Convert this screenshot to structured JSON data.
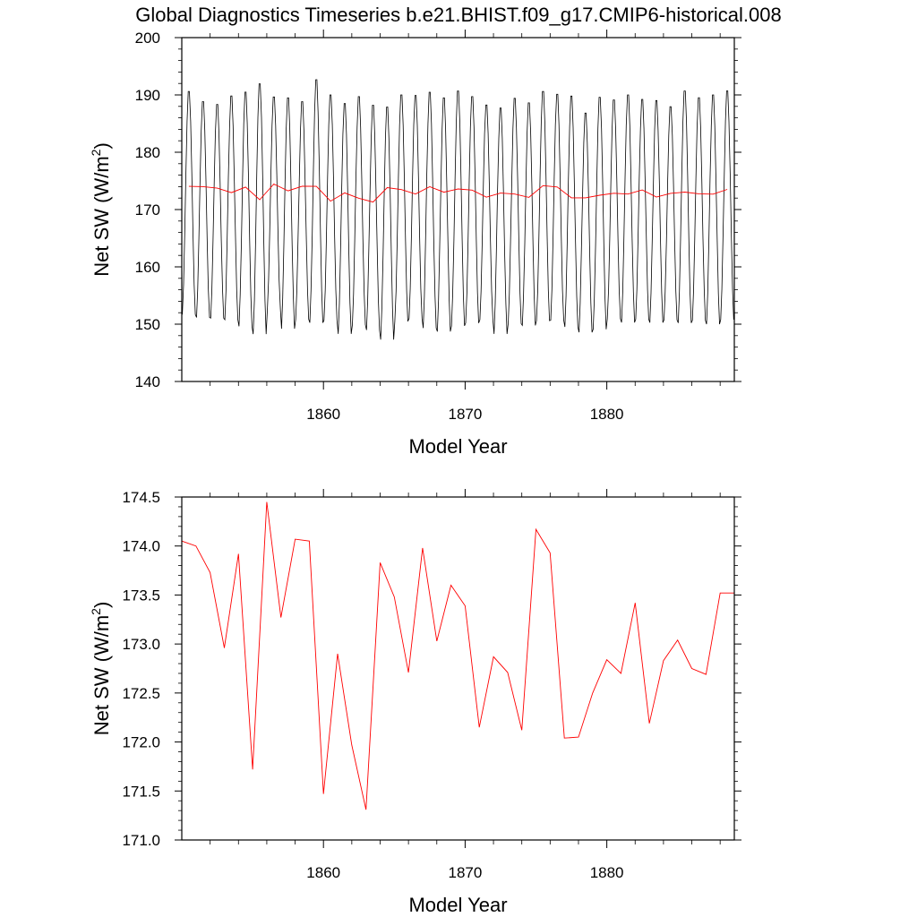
{
  "page": {
    "title": "Global Diagnostics Timeseries b.e21.BHIST.f09_g17.CMIP6-historical.008"
  },
  "chart_data": [
    {
      "type": "line",
      "title": "",
      "xlabel": "Model Year",
      "ylabel": "Net SW (W/m",
      "ylabel_superscript": "2",
      "ylabel_suffix": ")",
      "xlim": [
        1850,
        1889
      ],
      "ylim": [
        140,
        200
      ],
      "xticks": [
        "1860",
        "1870",
        "1880"
      ],
      "xtick_values": [
        1860,
        1870,
        1880
      ],
      "yticks": [
        "140",
        "150",
        "160",
        "170",
        "180",
        "190",
        "200"
      ],
      "ytick_values": [
        140,
        150,
        160,
        170,
        180,
        190,
        200
      ],
      "grid": false,
      "series": [
        {
          "color": "#000000",
          "kind": "monthly",
          "start": 1850.04,
          "step": 0.0833333,
          "annual_max": [
            191.3,
            189.5,
            189.0,
            190.5,
            191.2,
            192.7,
            190.3,
            190.2,
            189.5,
            193.4,
            190.7,
            189.2,
            190.4,
            188.9,
            188.6,
            190.7,
            190.6,
            191.2,
            190.2,
            191.4,
            190.4,
            188.9,
            188.4,
            190.1,
            189.3,
            191.3,
            190.8,
            190.5,
            187.5,
            190.3,
            189.8,
            190.7,
            189.9,
            189.7,
            188.6,
            191.4,
            190.2,
            190.7,
            191.4
          ],
          "annual_min": [
            151.0,
            150.5,
            150.4,
            150.1,
            148.9,
            147.5,
            152.0,
            148.5,
            150.2,
            149.5,
            150.0,
            147.6,
            149.2,
            148.3,
            146.6,
            149.8,
            150.3,
            148.6,
            148.0,
            149.0,
            149.5,
            150.1,
            147.6,
            149.4,
            149.1,
            149.9,
            150.0,
            148.8,
            147.9,
            148.4,
            150.3,
            149.6,
            150.2,
            149.6,
            150.1,
            149.5,
            150.0,
            149.3,
            150.1
          ]
        },
        {
          "color": "#ff0000",
          "kind": "annual",
          "x": [
            1850.5,
            1851.5,
            1852.5,
            1853.5,
            1854.5,
            1855.5,
            1856.5,
            1857.5,
            1858.5,
            1859.5,
            1860.5,
            1861.5,
            1862.5,
            1863.5,
            1864.5,
            1865.5,
            1866.5,
            1867.5,
            1868.5,
            1869.5,
            1870.5,
            1871.5,
            1872.5,
            1873.5,
            1874.5,
            1875.5,
            1876.5,
            1877.5,
            1878.5,
            1879.5,
            1880.5,
            1881.5,
            1882.5,
            1883.5,
            1884.5,
            1885.5,
            1886.5,
            1887.5,
            1888.5
          ],
          "values": [
            174.05,
            174.0,
            173.73,
            172.96,
            173.92,
            171.72,
            174.45,
            173.27,
            174.07,
            174.05,
            171.47,
            172.9,
            171.97,
            171.31,
            173.83,
            173.48,
            172.71,
            173.98,
            173.03,
            173.6,
            173.39,
            172.15,
            172.87,
            172.71,
            172.12,
            174.17,
            173.93,
            172.04,
            172.05,
            172.5,
            172.84,
            172.7,
            173.42,
            172.19,
            172.83,
            173.04,
            172.75,
            172.69,
            173.52
          ]
        }
      ]
    },
    {
      "type": "line",
      "title": "",
      "xlabel": "Model Year",
      "ylabel": "Net SW (W/m",
      "ylabel_superscript": "2",
      "ylabel_suffix": ")",
      "xlim": [
        1850,
        1889
      ],
      "ylim": [
        171.0,
        174.5
      ],
      "xticks": [
        "1860",
        "1870",
        "1880"
      ],
      "xtick_values": [
        1860,
        1870,
        1880
      ],
      "yticks": [
        "171.0",
        "171.5",
        "172.0",
        "172.5",
        "173.0",
        "173.5",
        "174.0",
        "174.5"
      ],
      "ytick_values": [
        171.0,
        171.5,
        172.0,
        172.5,
        173.0,
        173.5,
        174.0,
        174.5
      ],
      "grid": false,
      "series": [
        {
          "color": "#ff0000",
          "kind": "annual",
          "x": [
            1850.0,
            1851.0,
            1852.0,
            1853.0,
            1854.0,
            1855.0,
            1856.0,
            1857.0,
            1858.0,
            1859.0,
            1860.0,
            1861.0,
            1862.0,
            1863.0,
            1864.0,
            1865.0,
            1866.0,
            1867.0,
            1868.0,
            1869.0,
            1870.0,
            1871.0,
            1872.0,
            1873.0,
            1874.0,
            1875.0,
            1876.0,
            1877.0,
            1878.0,
            1879.0,
            1880.0,
            1881.0,
            1882.0,
            1883.0,
            1884.0,
            1885.0,
            1886.0,
            1887.0,
            1888.0,
            1889.0
          ],
          "values": [
            174.05,
            174.0,
            173.73,
            172.96,
            173.92,
            171.72,
            174.45,
            173.27,
            174.07,
            174.05,
            171.47,
            172.9,
            171.97,
            171.31,
            173.83,
            173.48,
            172.71,
            173.98,
            173.03,
            173.6,
            173.39,
            172.15,
            172.87,
            172.71,
            172.12,
            174.17,
            173.93,
            172.04,
            172.05,
            172.5,
            172.84,
            172.7,
            173.42,
            172.19,
            172.83,
            173.04,
            172.75,
            172.69,
            173.52,
            173.52
          ]
        }
      ]
    }
  ]
}
